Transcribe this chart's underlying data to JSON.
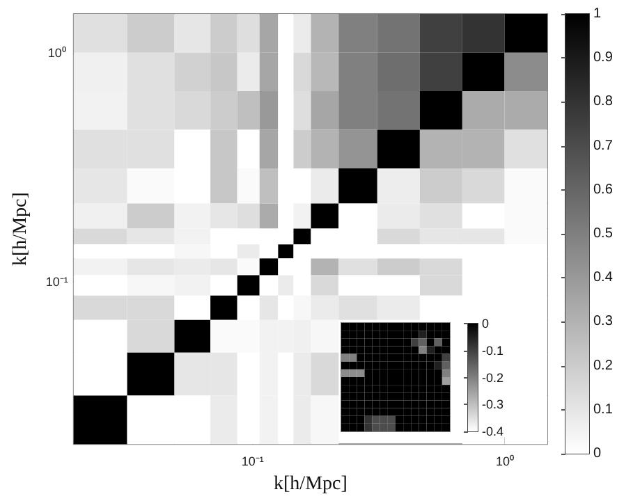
{
  "chart_data": [
    {
      "type": "heatmap",
      "xlabel": "k[h/Mpc]",
      "ylabel": "k[h/Mpc]",
      "x": [
        0.025,
        0.0404,
        0.0593,
        0.0779,
        0.0969,
        0.117,
        0.136,
        0.155,
        0.187,
        0.257,
        0.379,
        0.559,
        0.823,
        1.21
      ],
      "y": [
        1.21,
        0.823,
        0.559,
        0.379,
        0.257,
        0.187,
        0.155,
        0.136,
        0.117,
        0.0969,
        0.0779,
        0.0593,
        0.0404,
        0.025
      ],
      "xlim": [
        0.0195,
        1.475
      ],
      "ylim": [
        0.0195,
        1.475
      ],
      "log": "xy",
      "xticks": [
        {
          "value": 0.1,
          "label": "10⁻¹"
        },
        {
          "value": 1,
          "label": "10⁰"
        }
      ],
      "yticks": [
        {
          "value": 0.1,
          "label": "10⁻¹"
        },
        {
          "value": 1,
          "label": "10⁰"
        }
      ],
      "clim": [
        0,
        1
      ],
      "cticks": [
        0,
        0.1,
        0.2,
        0.3,
        0.4,
        0.5,
        0.6,
        0.7,
        0.8,
        0.9,
        1
      ],
      "cells": [
        [
          0.12,
          0.2,
          0.1,
          0.2,
          0.13,
          0.35,
          0,
          0.08,
          0.3,
          0.5,
          0.55,
          0.75,
          0.8,
          1
        ],
        [
          0.06,
          0.12,
          0.18,
          0.22,
          0.08,
          0.35,
          0,
          0.15,
          0.28,
          0.5,
          0.57,
          0.75,
          1,
          0.45
        ],
        [
          0.05,
          0.12,
          0.15,
          0.2,
          0.25,
          0.4,
          0,
          0.13,
          0.35,
          0.5,
          0.55,
          1,
          0.33,
          0.33
        ],
        [
          0.12,
          0.12,
          0,
          0.22,
          0,
          0.35,
          0,
          0.2,
          0.3,
          0.42,
          1,
          0.3,
          0.3,
          0.12
        ],
        [
          0.1,
          0.02,
          0,
          0.22,
          0.02,
          0.25,
          0,
          0,
          0.08,
          1,
          0.07,
          0.2,
          0.15,
          0.02
        ],
        [
          0.06,
          0.2,
          0.05,
          0.1,
          0.13,
          0.33,
          0,
          0.05,
          1,
          0,
          0.08,
          0.12,
          0,
          0.02
        ],
        [
          0.15,
          0.1,
          0.05,
          0,
          0,
          0,
          0,
          1,
          0,
          0,
          0.15,
          0.1,
          0.1,
          0.02
        ],
        [
          0,
          0,
          0.03,
          0,
          0.08,
          0,
          1,
          0,
          0,
          0,
          0,
          0,
          0,
          0
        ],
        [
          0.05,
          0.1,
          0.08,
          0.1,
          0.02,
          1,
          0,
          0,
          0.3,
          0.12,
          0.2,
          0.15,
          0,
          0
        ],
        [
          0,
          0.03,
          0.05,
          0,
          1,
          0,
          0.08,
          0,
          0.15,
          0,
          0,
          0.15,
          0,
          0
        ],
        [
          0.15,
          0.15,
          0,
          1,
          0,
          0.1,
          0,
          0.03,
          0.08,
          0.12,
          0.08,
          0,
          0,
          0
        ],
        [
          0,
          0.15,
          1,
          0.02,
          0.02,
          0.05,
          0.05,
          0.06,
          0.03,
          null,
          null,
          null,
          0,
          0
        ],
        [
          0,
          1,
          0.1,
          0.1,
          0,
          0.05,
          0,
          0.08,
          0.15,
          null,
          null,
          null,
          0,
          0
        ],
        [
          1,
          0,
          0,
          0.08,
          0,
          0.05,
          0,
          0.08,
          0.03,
          null,
          null,
          null,
          0,
          0
        ]
      ]
    },
    {
      "type": "heatmap",
      "categories": [
        null,
        null,
        null,
        null,
        null,
        null,
        null,
        null,
        null,
        null,
        null,
        null,
        null,
        null
      ],
      "y_categories": [
        null,
        null,
        null,
        null,
        null,
        null,
        null,
        null,
        null,
        null,
        null,
        null,
        null,
        null
      ],
      "clim": [
        -0.4,
        0
      ],
      "cticks": [
        -0.4,
        -0.3,
        -0.2,
        -0.1,
        0
      ],
      "cells": [
        [
          0,
          0,
          0,
          0,
          0,
          0,
          0,
          0,
          0,
          0,
          0,
          0,
          0,
          0
        ],
        [
          0,
          0,
          0,
          0,
          0,
          0,
          0,
          0,
          0,
          0,
          -0.05,
          0,
          0,
          0
        ],
        [
          0,
          0,
          0,
          0,
          0,
          0,
          0,
          0,
          0,
          -0.1,
          -0.15,
          0,
          -0.15,
          0
        ],
        [
          0,
          0,
          0,
          0,
          0,
          0,
          0,
          0,
          0,
          0,
          -0.2,
          -0.05,
          0,
          0
        ],
        [
          -0.2,
          -0.2,
          0,
          0,
          0,
          0,
          0,
          0,
          0,
          0,
          0,
          0,
          0,
          -0.1
        ],
        [
          0,
          0,
          0,
          0,
          0,
          0,
          0,
          0,
          0,
          0,
          0,
          0,
          -0.05,
          -0.15
        ],
        [
          -0.22,
          -0.22,
          -0.22,
          0,
          0,
          0,
          0,
          0,
          0,
          0,
          0,
          0,
          0,
          -0.2
        ],
        [
          0,
          0,
          0,
          0,
          0,
          0,
          0,
          0,
          0,
          0,
          0,
          0,
          0,
          -0.25
        ],
        [
          0,
          0,
          0,
          0,
          0,
          0,
          0,
          0,
          0,
          0,
          0,
          0,
          0,
          0
        ],
        [
          0,
          0,
          0,
          0,
          0,
          0,
          0,
          0,
          0,
          0,
          0,
          0,
          0,
          0
        ],
        [
          0,
          0,
          0,
          0,
          0,
          0,
          0,
          0,
          0,
          0,
          0,
          0,
          0,
          0
        ],
        [
          0,
          0,
          0,
          0,
          0,
          0,
          0,
          0,
          0,
          0,
          0,
          0,
          0,
          0
        ],
        [
          0,
          0,
          0,
          -0.08,
          -0.12,
          -0.12,
          -0.12,
          0,
          0,
          0,
          0,
          0,
          0,
          0
        ],
        [
          0,
          0,
          0,
          -0.08,
          -0.12,
          -0.12,
          -0.12,
          0,
          0,
          0,
          0,
          0,
          0,
          0
        ]
      ]
    }
  ]
}
